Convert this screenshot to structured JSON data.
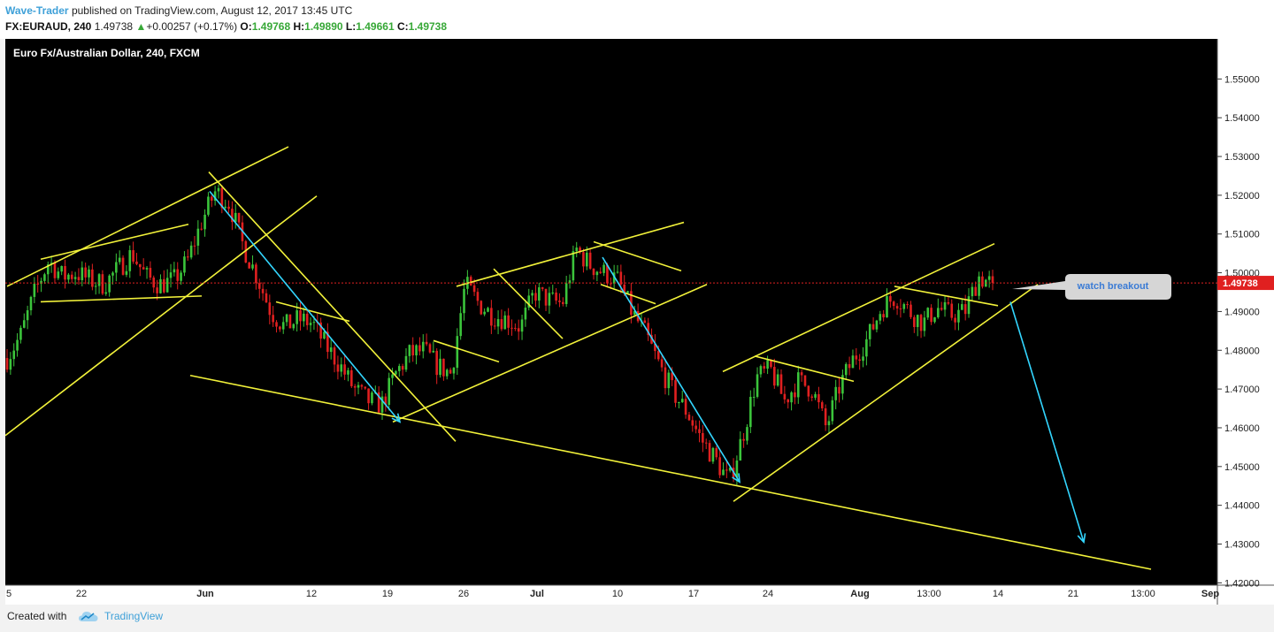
{
  "header": {
    "author": "Wave-Trader",
    "published": "published on TradingView.com, August 12, 2017 13:45 UTC",
    "symbol": "FX:EURAUD, 240",
    "last": "1.49738",
    "change_arrow": "▲",
    "change": "+0.00257 (+0.17%)",
    "o_label": "O:",
    "o_value": "1.49768",
    "h_label": "H:",
    "h_value": "1.49890",
    "l_label": "L:",
    "l_value": "1.49661",
    "c_label": "C:",
    "c_value": "1.49738"
  },
  "footer": {
    "created_with": "Created with",
    "brand": "TradingView"
  },
  "colors": {
    "background": "#000000",
    "up": "#3bc43b",
    "down": "#e02020",
    "trendline": "#f2f23a",
    "arrow": "#33d6ff"
  },
  "chart_data": {
    "type": "candlestick",
    "title": "Euro Fx/Australian Dollar, 240, FXCM",
    "ylim": [
      1.415,
      1.557
    ],
    "y_ticks": [
      "1.55000",
      "1.54000",
      "1.53000",
      "1.52000",
      "1.51000",
      "1.50000",
      "1.49000",
      "1.48000",
      "1.47000",
      "1.46000",
      "1.45000",
      "1.44000",
      "1.43000",
      "1.42000"
    ],
    "x_ticks": [
      "5",
      "22",
      "Jun",
      "12",
      "19",
      "26",
      "Jul",
      "10",
      "17",
      "24",
      "Aug",
      "13:00",
      "14",
      "21",
      "13:00",
      "Sep"
    ],
    "last_price": "1.49738",
    "price_path": [
      1.478,
      1.484,
      1.495,
      1.503,
      1.499,
      1.5,
      1.498,
      1.497,
      1.501,
      1.505,
      1.499,
      1.497,
      1.498,
      1.503,
      1.513,
      1.521,
      1.518,
      1.507,
      1.499,
      1.49,
      1.486,
      1.488,
      1.487,
      1.481,
      1.476,
      1.47,
      1.467,
      1.466,
      1.474,
      1.479,
      1.48,
      1.476,
      1.474,
      1.497,
      1.492,
      1.489,
      1.488,
      1.486,
      1.495,
      1.493,
      1.492,
      1.506,
      1.502,
      1.5,
      1.498,
      1.49,
      1.484,
      1.476,
      1.469,
      1.464,
      1.457,
      1.452,
      1.446,
      1.458,
      1.473,
      1.475,
      1.467,
      1.472,
      1.47,
      1.46,
      1.471,
      1.478,
      1.483,
      1.491,
      1.494,
      1.49,
      1.487,
      1.491,
      1.489,
      1.49,
      1.499,
      1.497
    ],
    "annotations": [
      {
        "type": "callout",
        "text": "watch breakout"
      }
    ]
  }
}
